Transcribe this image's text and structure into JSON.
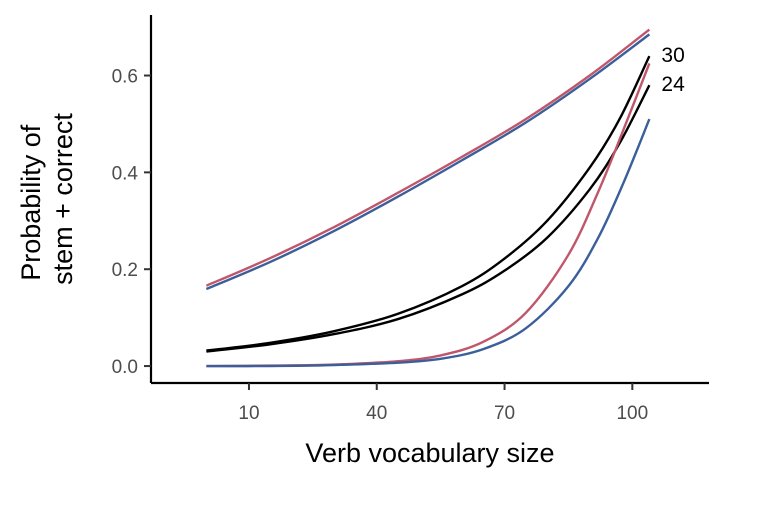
{
  "chart_data": {
    "type": "line",
    "xlabel": "Verb vocabulary size",
    "ylabel_lines": [
      "Probability of",
      "stem + correct"
    ],
    "xlim": [
      -13,
      118
    ],
    "ylim": [
      -0.035,
      0.725
    ],
    "x_ticks": [
      10,
      40,
      70,
      100
    ],
    "y_ticks": [
      0.0,
      0.2,
      0.4,
      0.6
    ],
    "y_tick_labels": [
      "0.0",
      "0.2",
      "0.4",
      "0.6"
    ],
    "grid": false,
    "legend": "none",
    "series": [
      {
        "color": "#c0566b",
        "x": [
          0,
          15,
          30,
          45,
          60,
          75,
          90,
          104
        ],
        "y": [
          0.166,
          0.223,
          0.287,
          0.358,
          0.432,
          0.51,
          0.6,
          0.695
        ]
      },
      {
        "color": "#3b5f9a",
        "x": [
          0,
          15,
          30,
          45,
          60,
          75,
          90,
          104
        ],
        "y": [
          0.159,
          0.215,
          0.279,
          0.35,
          0.425,
          0.503,
          0.593,
          0.685
        ]
      },
      {
        "label": "30",
        "color": "#000000",
        "x": [
          0,
          15,
          30,
          45,
          60,
          70,
          80,
          90,
          97,
          104
        ],
        "y": [
          0.032,
          0.048,
          0.072,
          0.108,
          0.165,
          0.222,
          0.3,
          0.41,
          0.51,
          0.64
        ]
      },
      {
        "label": "24",
        "color": "#000000",
        "x": [
          0,
          15,
          30,
          45,
          60,
          70,
          80,
          90,
          97,
          104
        ],
        "y": [
          0.03,
          0.045,
          0.066,
          0.097,
          0.148,
          0.197,
          0.265,
          0.365,
          0.46,
          0.58
        ]
      },
      {
        "color": "#c0566b",
        "x": [
          0,
          15,
          30,
          45,
          55,
          65,
          75,
          85,
          92,
          98,
          104
        ],
        "y": [
          0.0,
          0.001,
          0.003,
          0.01,
          0.022,
          0.05,
          0.11,
          0.23,
          0.36,
          0.49,
          0.625
        ]
      },
      {
        "color": "#3b5f9a",
        "x": [
          0,
          15,
          30,
          45,
          55,
          65,
          75,
          85,
          92,
          98,
          104
        ],
        "y": [
          0.0,
          0.0,
          0.002,
          0.007,
          0.015,
          0.035,
          0.078,
          0.165,
          0.265,
          0.38,
          0.51
        ]
      }
    ]
  }
}
